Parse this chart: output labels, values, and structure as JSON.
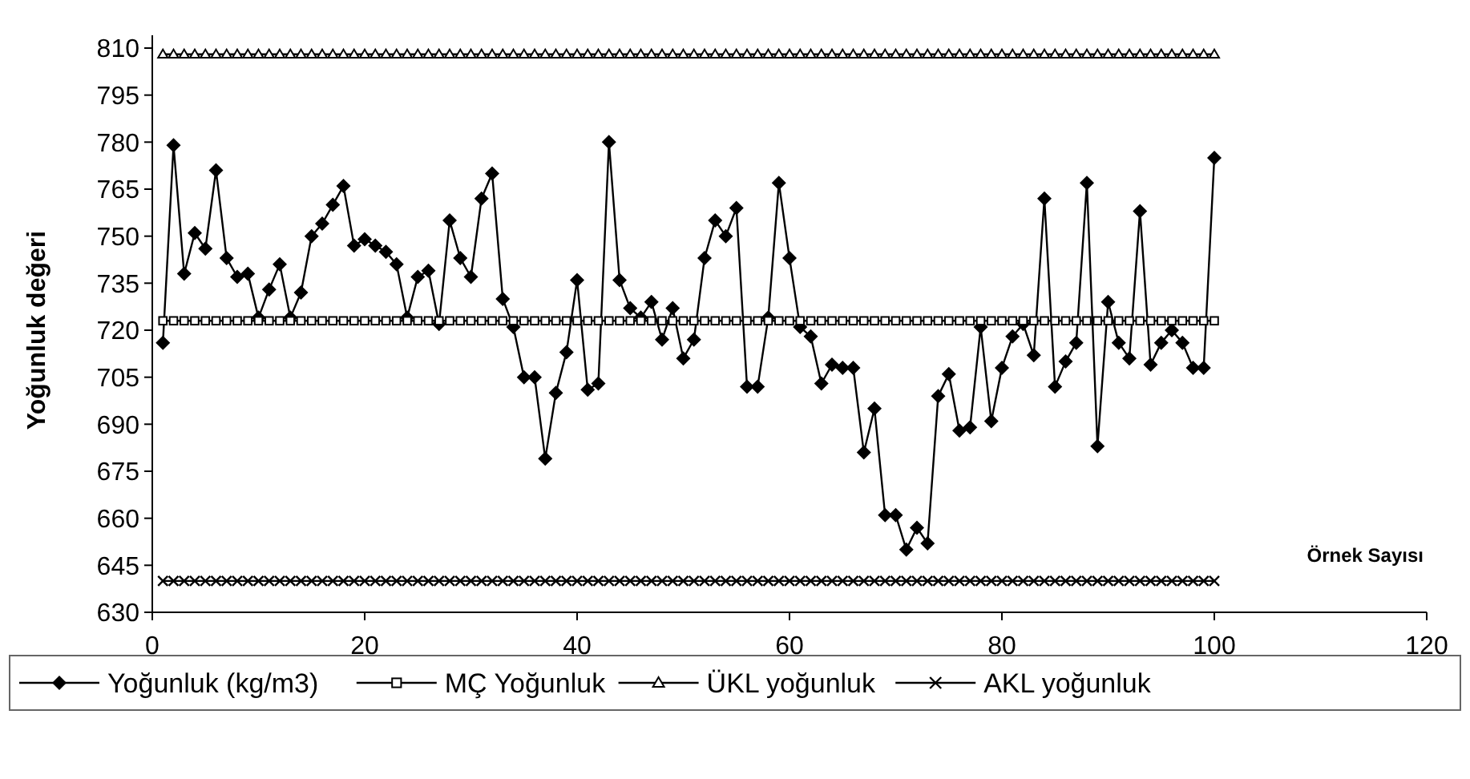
{
  "chart_data": {
    "type": "line",
    "ylabel": "Yoğunluk değeri",
    "xlabel": "Örnek Sayısı",
    "x": [
      1,
      2,
      3,
      4,
      5,
      6,
      7,
      8,
      9,
      10,
      11,
      12,
      13,
      14,
      15,
      16,
      17,
      18,
      19,
      20,
      21,
      22,
      23,
      24,
      25,
      26,
      27,
      28,
      29,
      30,
      31,
      32,
      33,
      34,
      35,
      36,
      37,
      38,
      39,
      40,
      41,
      42,
      43,
      44,
      45,
      46,
      47,
      48,
      49,
      50,
      51,
      52,
      53,
      54,
      55,
      56,
      57,
      58,
      59,
      60,
      61,
      62,
      63,
      64,
      65,
      66,
      67,
      68,
      69,
      70,
      71,
      72,
      73,
      74,
      75,
      76,
      77,
      78,
      79,
      80,
      81,
      82,
      83,
      84,
      85,
      86,
      87,
      88,
      89,
      90,
      91,
      92,
      93,
      94,
      95,
      96,
      97,
      98,
      99,
      100
    ],
    "xlim": [
      0,
      120
    ],
    "xticks": [
      0,
      20,
      40,
      60,
      80,
      100,
      120
    ],
    "ylim": [
      630,
      810
    ],
    "yticks": [
      630,
      645,
      660,
      675,
      690,
      705,
      720,
      735,
      750,
      765,
      780,
      795,
      810
    ],
    "grid": false,
    "legend": "bottom",
    "series": [
      {
        "name": "Yoğunluk (kg/m3)",
        "color": "#000000",
        "marker": "diamond",
        "values": [
          716,
          779,
          738,
          751,
          746,
          771,
          743,
          737,
          738,
          724,
          733,
          741,
          724,
          732,
          750,
          754,
          760,
          766,
          747,
          749,
          747,
          745,
          741,
          724,
          737,
          739,
          722,
          755,
          743,
          737,
          762,
          770,
          730,
          721,
          705,
          705,
          679,
          700,
          713,
          736,
          701,
          703,
          780,
          736,
          727,
          724,
          729,
          717,
          727,
          711,
          717,
          743,
          755,
          750,
          759,
          702,
          702,
          724,
          767,
          743,
          721,
          718,
          703,
          709,
          708,
          708,
          681,
          695,
          661,
          661,
          650,
          657,
          652,
          699,
          706,
          688,
          689,
          721,
          691,
          708,
          718,
          722,
          712,
          762,
          702,
          710,
          716,
          767,
          683,
          729,
          716,
          711,
          758,
          709,
          716,
          720,
          716,
          708,
          708,
          775
        ]
      },
      {
        "name": "MÇ Yoğunluk",
        "color": "#000000",
        "marker": "square",
        "values": [
          723,
          723,
          723,
          723,
          723,
          723,
          723,
          723,
          723,
          723,
          723,
          723,
          723,
          723,
          723,
          723,
          723,
          723,
          723,
          723,
          723,
          723,
          723,
          723,
          723,
          723,
          723,
          723,
          723,
          723,
          723,
          723,
          723,
          723,
          723,
          723,
          723,
          723,
          723,
          723,
          723,
          723,
          723,
          723,
          723,
          723,
          723,
          723,
          723,
          723,
          723,
          723,
          723,
          723,
          723,
          723,
          723,
          723,
          723,
          723,
          723,
          723,
          723,
          723,
          723,
          723,
          723,
          723,
          723,
          723,
          723,
          723,
          723,
          723,
          723,
          723,
          723,
          723,
          723,
          723,
          723,
          723,
          723,
          723,
          723,
          723,
          723,
          723,
          723,
          723,
          723,
          723,
          723,
          723,
          723,
          723,
          723,
          723,
          723,
          723
        ]
      },
      {
        "name": "ÜKL yoğunluk",
        "color": "#000000",
        "marker": "triangle",
        "values": [
          808,
          808,
          808,
          808,
          808,
          808,
          808,
          808,
          808,
          808,
          808,
          808,
          808,
          808,
          808,
          808,
          808,
          808,
          808,
          808,
          808,
          808,
          808,
          808,
          808,
          808,
          808,
          808,
          808,
          808,
          808,
          808,
          808,
          808,
          808,
          808,
          808,
          808,
          808,
          808,
          808,
          808,
          808,
          808,
          808,
          808,
          808,
          808,
          808,
          808,
          808,
          808,
          808,
          808,
          808,
          808,
          808,
          808,
          808,
          808,
          808,
          808,
          808,
          808,
          808,
          808,
          808,
          808,
          808,
          808,
          808,
          808,
          808,
          808,
          808,
          808,
          808,
          808,
          808,
          808,
          808,
          808,
          808,
          808,
          808,
          808,
          808,
          808,
          808,
          808,
          808,
          808,
          808,
          808,
          808,
          808,
          808,
          808,
          808,
          808
        ]
      },
      {
        "name": "AKL yoğunluk",
        "color": "#000000",
        "marker": "cross",
        "values": [
          640,
          640,
          640,
          640,
          640,
          640,
          640,
          640,
          640,
          640,
          640,
          640,
          640,
          640,
          640,
          640,
          640,
          640,
          640,
          640,
          640,
          640,
          640,
          640,
          640,
          640,
          640,
          640,
          640,
          640,
          640,
          640,
          640,
          640,
          640,
          640,
          640,
          640,
          640,
          640,
          640,
          640,
          640,
          640,
          640,
          640,
          640,
          640,
          640,
          640,
          640,
          640,
          640,
          640,
          640,
          640,
          640,
          640,
          640,
          640,
          640,
          640,
          640,
          640,
          640,
          640,
          640,
          640,
          640,
          640,
          640,
          640,
          640,
          640,
          640,
          640,
          640,
          640,
          640,
          640,
          640,
          640,
          640,
          640,
          640,
          640,
          640,
          640,
          640,
          640,
          640,
          640,
          640,
          640,
          640,
          640,
          640,
          640,
          640,
          640
        ]
      }
    ]
  }
}
